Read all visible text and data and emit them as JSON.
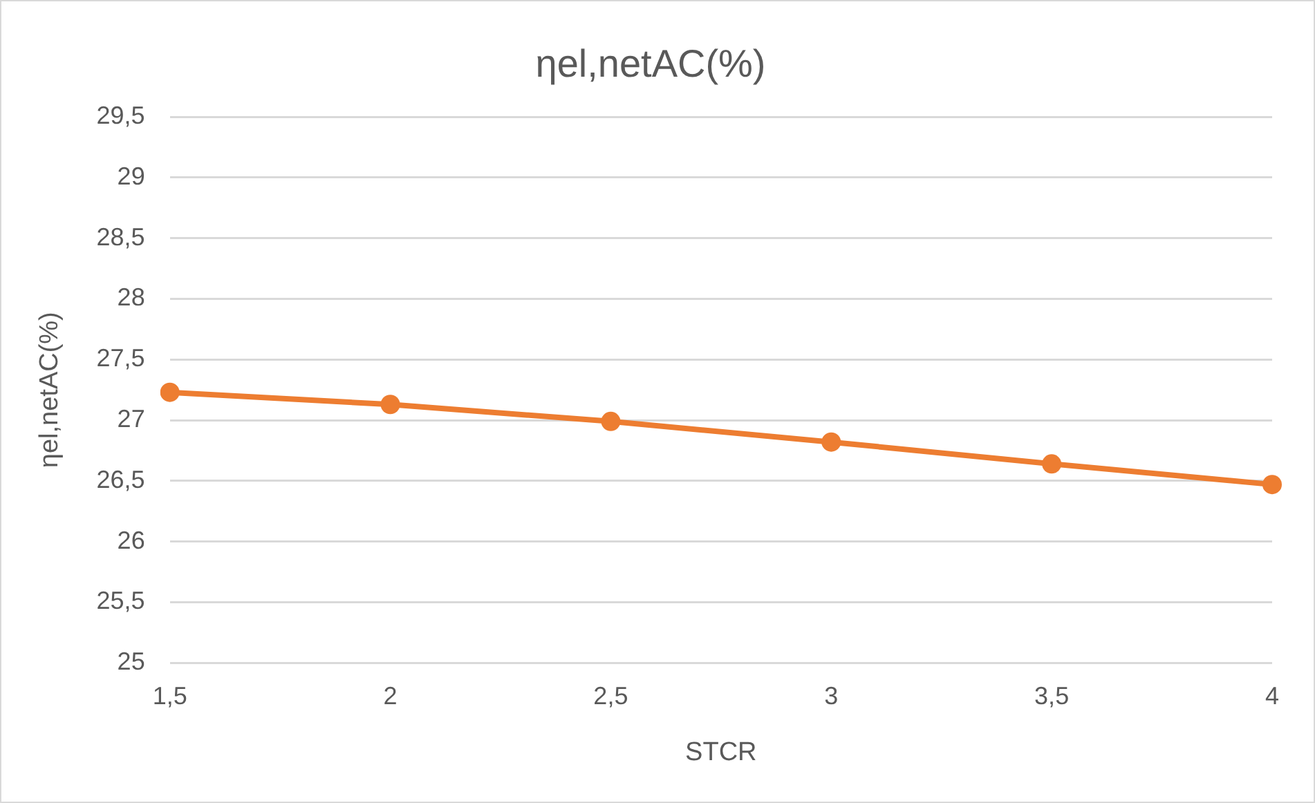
{
  "chart_data": {
    "type": "line",
    "title": "ηel,netAC(%)",
    "xlabel": "STCR",
    "ylabel": "ηel,netAC(%)",
    "categories": [
      "1,5",
      "2",
      "2,5",
      "3",
      "3,5",
      "4"
    ],
    "series": [
      {
        "color": "#ed7d31",
        "values": [
          27.23,
          27.13,
          26.99,
          26.82,
          26.64,
          26.47
        ]
      }
    ],
    "ylim": [
      25,
      29.5
    ],
    "yticks": [
      25,
      {
        "value": 25.5,
        "label": "25,5"
      },
      26,
      {
        "value": 26.5,
        "label": "26,5"
      },
      27,
      {
        "value": 27.5,
        "label": "27,5"
      },
      28,
      {
        "value": 28.5,
        "label": "28,5"
      },
      29,
      {
        "value": 29.5,
        "label": "29,5"
      }
    ],
    "grid": "y",
    "legend": false,
    "marker": "circle",
    "line_style": "solid"
  }
}
